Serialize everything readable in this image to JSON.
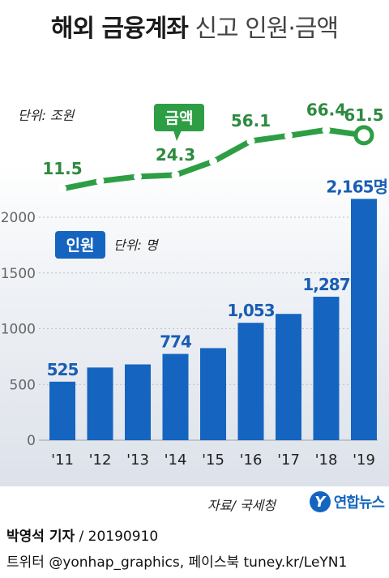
{
  "title": {
    "bold": "해외 금융계좌",
    "light": "신고 인원·금액"
  },
  "source": "자료/ 국세청",
  "logo": {
    "mark": "Y",
    "text": "연합뉴스"
  },
  "credits": {
    "author": "박영석 기자",
    "date": "/ 20190910",
    "line2": "트위터 @yonhap_graphics, 페이스북 tuney.kr/LeYN1"
  },
  "chart_data": [
    {
      "type": "bar",
      "name": "인원",
      "unit_label": "단위: 명",
      "categories": [
        "'11",
        "'12",
        "'13",
        "'14",
        "'15",
        "'16",
        "'17",
        "'18",
        "'19"
      ],
      "values": [
        525,
        652,
        680,
        774,
        826,
        1053,
        1133,
        1287,
        2165
      ],
      "data_labels": [
        "525",
        "",
        "",
        "774",
        "",
        "1,053",
        "",
        "1,287",
        "2,165명"
      ],
      "ylim": [
        0,
        2000
      ],
      "yticks": [
        0,
        500,
        1000,
        1500,
        2000
      ],
      "color": "#1565c0"
    },
    {
      "type": "line",
      "name": "금액",
      "unit_label": "단위: 조원",
      "categories": [
        "'11",
        "'12",
        "'13",
        "'14",
        "'15",
        "'16",
        "'17",
        "'18",
        "'19"
      ],
      "values": [
        11.5,
        18.6,
        22.8,
        24.3,
        36.9,
        56.1,
        61.1,
        66.4,
        61.5
      ],
      "data_labels": [
        "11.5",
        "",
        "",
        "24.3",
        "",
        "56.1",
        "",
        "66.4",
        "61.5"
      ],
      "color": "#2e9e44"
    }
  ]
}
